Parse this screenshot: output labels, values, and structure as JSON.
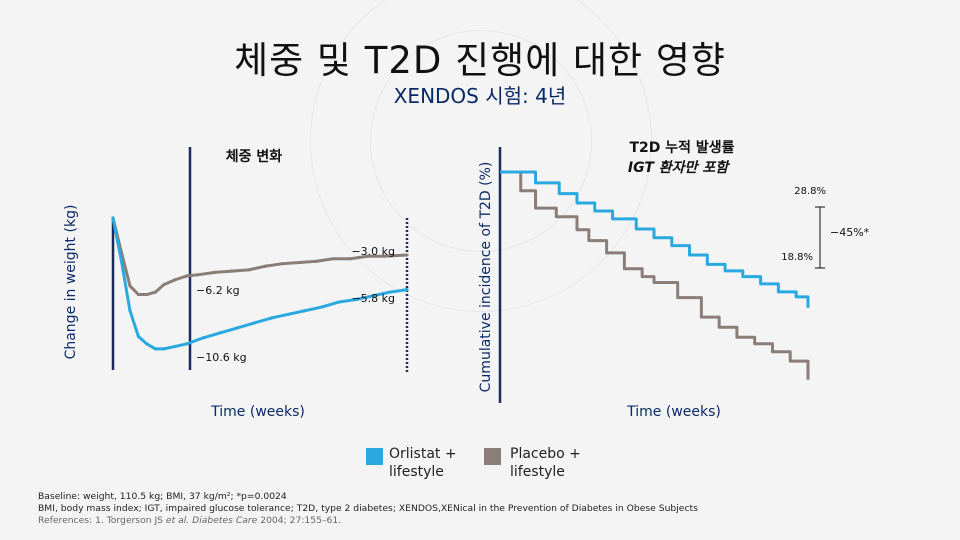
{
  "slide": {
    "title": "체중 및 T2D 진행에 대한 영향",
    "subtitle": "XENDOS 시험: 4년"
  },
  "colors": {
    "orlistat": "#29a9e0",
    "placebo": "#8b7d78",
    "axis": "#1a2a5e",
    "title": "#0a2a66"
  },
  "legend": {
    "orlistat": "Orlistat +\nlifestyle",
    "placebo": "Placebo +\nlifestyle"
  },
  "footnote": {
    "line1": "Baseline: weight, 110.5 kg; BMI, 37 kg/m²; *p=0.0024",
    "line2": "BMI, body mass index; IGT, impaired glucose tolerance; T2D, type 2 diabetes; XENDOS,XENical in the Prevention of Diabetes in Obese Subjects",
    "ref_prefix": "References: 1. Torgerson JS ",
    "ref_etal": "et al.",
    "ref_journal": "Diabetes Care",
    "ref_suffix": " 2004; 27:155–61."
  },
  "chart_data": [
    {
      "type": "line",
      "title": "체중 변화",
      "xlabel": "Time (weeks)",
      "ylabel": "Change in weight (kg)",
      "grid": false,
      "xlim": [
        0,
        208
      ],
      "ylim": [
        -11.5,
        0
      ],
      "series": [
        {
          "name": "Placebo + lifestyle",
          "color": "#8b7d78",
          "x": [
            0,
            6,
            12,
            18,
            24,
            30,
            36,
            44,
            52,
            60,
            72,
            84,
            96,
            108,
            120,
            132,
            144,
            156,
            168,
            180,
            192,
            208
          ],
          "y": [
            0,
            -2.8,
            -5.5,
            -6.2,
            -6.2,
            -6.0,
            -5.4,
            -5.0,
            -4.7,
            -4.6,
            -4.4,
            -4.3,
            -4.2,
            -3.9,
            -3.7,
            -3.6,
            -3.5,
            -3.3,
            -3.3,
            -3.1,
            -3.1,
            -3.0
          ]
        },
        {
          "name": "Orlistat + lifestyle",
          "color": "#29a9e0",
          "x": [
            0,
            6,
            12,
            18,
            24,
            30,
            36,
            44,
            52,
            64,
            76,
            88,
            100,
            112,
            124,
            136,
            148,
            160,
            172,
            184,
            196,
            208
          ],
          "y": [
            0,
            -3.5,
            -7.5,
            -9.6,
            -10.2,
            -10.6,
            -10.6,
            -10.4,
            -10.2,
            -9.7,
            -9.3,
            -8.9,
            -8.5,
            -8.1,
            -7.8,
            -7.5,
            -7.2,
            -6.8,
            -6.6,
            -6.3,
            -6.0,
            -5.8
          ]
        }
      ],
      "annotations": [
        "−3.0 kg",
        "−6.2 kg",
        "−5.8 kg",
        "−10.6 kg"
      ]
    },
    {
      "type": "line",
      "title": "T2D 누적 발생률",
      "subtitle": "IGT 환자만 포함",
      "xlabel": "Time (weeks)",
      "ylabel": "Cumulative incidence of T2D (%)",
      "grid": false,
      "xlim": [
        0,
        208
      ],
      "ylim": [
        0,
        32
      ],
      "series": [
        {
          "name": "Placebo + lifestyle",
          "color": "#8b7d78",
          "step": true,
          "x": [
            0,
            14,
            24,
            38,
            52,
            60,
            72,
            84,
            96,
            104,
            120,
            136,
            148,
            160,
            172,
            184,
            196,
            208
          ],
          "y": [
            0,
            2.6,
            5.0,
            6.2,
            8.0,
            9.5,
            11.2,
            13.4,
            14.5,
            15.3,
            17.4,
            20.1,
            21.5,
            22.9,
            23.8,
            24.9,
            26.2,
            28.8
          ]
        },
        {
          "name": "Orlistat + lifestyle",
          "color": "#29a9e0",
          "step": true,
          "x": [
            0,
            24,
            40,
            52,
            64,
            76,
            92,
            104,
            116,
            128,
            140,
            152,
            164,
            176,
            188,
            200,
            208
          ],
          "y": [
            0,
            1.5,
            3.0,
            4.3,
            5.4,
            6.5,
            7.9,
            9.1,
            10.2,
            11.5,
            12.8,
            13.7,
            14.5,
            15.5,
            16.6,
            17.3,
            18.8
          ]
        }
      ],
      "annotations": [
        "28.8%",
        "18.8%",
        "−45%*"
      ]
    }
  ]
}
